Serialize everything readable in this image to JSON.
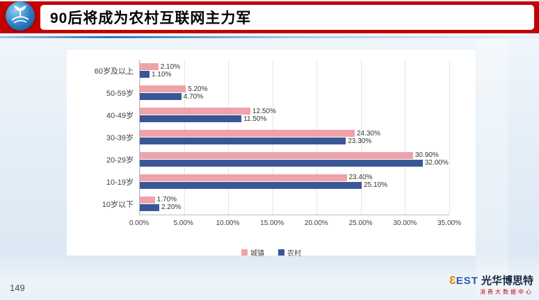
{
  "header": {
    "title": "90后将成为农村互联网主力军",
    "accent_color": "#c40000",
    "logo_icon": "company-globe-logo"
  },
  "chart_data": {
    "type": "bar",
    "orientation": "horizontal",
    "title": "",
    "categories": [
      "60岁及以上",
      "50-59岁",
      "40-49岁",
      "30-39岁",
      "20-29岁",
      "10-19岁",
      "10岁以下"
    ],
    "series": [
      {
        "name": "城镇",
        "color": "#efa2a9",
        "values": [
          2.1,
          5.2,
          12.5,
          24.3,
          30.9,
          23.4,
          1.7
        ],
        "labels": [
          "2.10%",
          "5.20%",
          "12.50%",
          "24.30%",
          "30.90%",
          "23.40%",
          "1.70%"
        ]
      },
      {
        "name": "农村",
        "color": "#3a5795",
        "values": [
          1.1,
          4.7,
          11.5,
          23.3,
          32.0,
          25.1,
          2.2
        ],
        "labels": [
          "1.10%",
          "4.70%",
          "11.50%",
          "23.30%",
          "32.00%",
          "25.10%",
          "2.20%"
        ]
      }
    ],
    "x_ticks": [
      "0.00%",
      "5.00%",
      "10.00%",
      "15.00%",
      "20.00%",
      "25.00%",
      "30.00%",
      "35.00%"
    ],
    "xlim": [
      0,
      35
    ],
    "grid": true,
    "legend_position": "bottom"
  },
  "footer": {
    "page_number": "149",
    "brand_mark": "3",
    "brand_rest": "EST",
    "brand_name": "光华博思特",
    "brand_subtitle": "消费大数据中心"
  }
}
